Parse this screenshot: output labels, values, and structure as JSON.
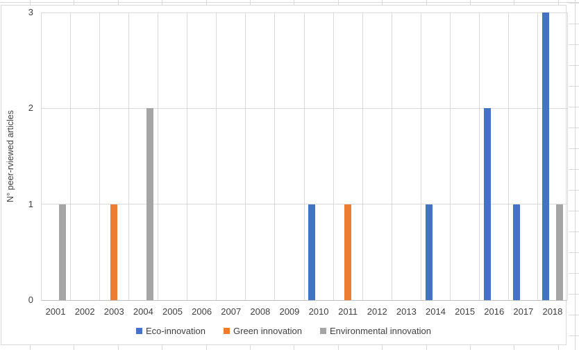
{
  "chart_data": {
    "type": "bar",
    "title": "",
    "ylabel": "N° peer-rviewed articles",
    "xlabel": "",
    "ylim": [
      0,
      3
    ],
    "yticks": [
      0,
      1,
      2,
      3
    ],
    "grid": {
      "horizontal": true,
      "vertical": true
    },
    "legend_position": "bottom",
    "categories": [
      "2001",
      "2002",
      "2003",
      "2004",
      "2005",
      "2006",
      "2007",
      "2008",
      "2009",
      "2010",
      "2011",
      "2012",
      "2013",
      "2014",
      "2015",
      "2016",
      "2017",
      "2018"
    ],
    "series": [
      {
        "name": "Eco-innovation",
        "color": "#4472C4",
        "values": [
          0,
          0,
          0,
          0,
          0,
          0,
          0,
          0,
          0,
          1,
          0,
          0,
          0,
          1,
          0,
          2,
          1,
          3
        ]
      },
      {
        "name": "Green innovation",
        "color": "#ED7D31",
        "values": [
          0,
          0,
          1,
          0,
          0,
          0,
          0,
          0,
          0,
          0,
          1,
          0,
          0,
          0,
          0,
          0,
          0,
          0
        ]
      },
      {
        "name": "Environmental innovation",
        "color": "#A5A5A5",
        "values": [
          1,
          0,
          0,
          2,
          0,
          0,
          0,
          0,
          0,
          0,
          0,
          0,
          0,
          0,
          0,
          0,
          0,
          1
        ]
      }
    ]
  },
  "colors": {
    "plot_gridline": "#D9D9D9",
    "axis_line": "#BFBFBF",
    "text": "#3F3F3F",
    "chart_border": "#D9D9D9",
    "sheet_gridline": "#D9D9D9",
    "bar_blue": "#4472C4",
    "bar_orange": "#ED7D31",
    "bar_gray": "#A5A5A5"
  }
}
